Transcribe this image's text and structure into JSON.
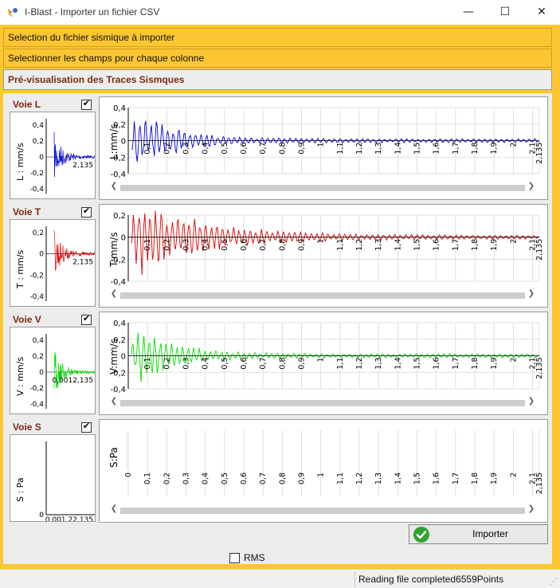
{
  "window": {
    "title": "I-Blast - Importer un fichier CSV",
    "minimize": "—",
    "maximize": "☐",
    "close": "✕"
  },
  "sections": {
    "select_file": "Selection du fichier sismique à importer",
    "select_fields": "Selectionner les champs pour chaque colonne",
    "preview": "Pré-visualisation des Traces Sismques"
  },
  "channels": [
    {
      "label": "Voie L",
      "checked": true,
      "axis": "L:mm/s",
      "mini_axis": "L : mm/s",
      "color": "#0000d8",
      "main_ticks": [
        "0,4",
        "0,2",
        "0",
        "-0,2",
        "-0,4"
      ],
      "mini_ticks": [
        "0,4",
        "0,2",
        "0",
        "-0,2",
        "-0,4"
      ],
      "mini_xlabel": "2,135",
      "has_signal": true
    },
    {
      "label": "Voie T",
      "checked": true,
      "axis": "T:mm/s",
      "mini_axis": "T : mm/s",
      "color": "#dc0000",
      "main_ticks": [
        "0,2",
        "0",
        "-0,2",
        "-0,4"
      ],
      "mini_ticks": [
        "0,2",
        "0",
        "-0,2",
        "-0,4"
      ],
      "mini_xlabel": "2,135",
      "has_signal": true
    },
    {
      "label": "Voie V",
      "checked": true,
      "axis": "V:mm/s",
      "mini_axis": "V : mm/s",
      "color": "#00dc00",
      "main_ticks": [
        "0,4",
        "0,2",
        "0",
        "-0,2",
        "-0,4"
      ],
      "mini_ticks": [
        "0,4",
        "0,2",
        "0",
        "-0,2",
        "-0,4"
      ],
      "mini_xlabel": "0,0012,135",
      "has_signal": true
    },
    {
      "label": "Voie S",
      "checked": true,
      "axis": "S:Pa",
      "mini_axis": "S : Pa",
      "color": "#000000",
      "main_ticks": [],
      "mini_ticks": [
        "0"
      ],
      "mini_xlabel": "0,001   22,135",
      "has_signal": false
    }
  ],
  "time_ticks": [
    "0",
    "0,1",
    "0,2",
    "0,3",
    "0,4",
    "0,5",
    "0,6",
    "0,7",
    "0,8",
    "0,9",
    "1",
    "1,1",
    "1,2",
    "1,3",
    "1,4",
    "1,5",
    "1,6",
    "1,7",
    "1,8",
    "1,9",
    "2",
    "2,1",
    "2,135"
  ],
  "footer": {
    "rms_label": "RMS",
    "rms_checked": false,
    "import_label": "Importer"
  },
  "status": "Reading file completed6559Points"
}
